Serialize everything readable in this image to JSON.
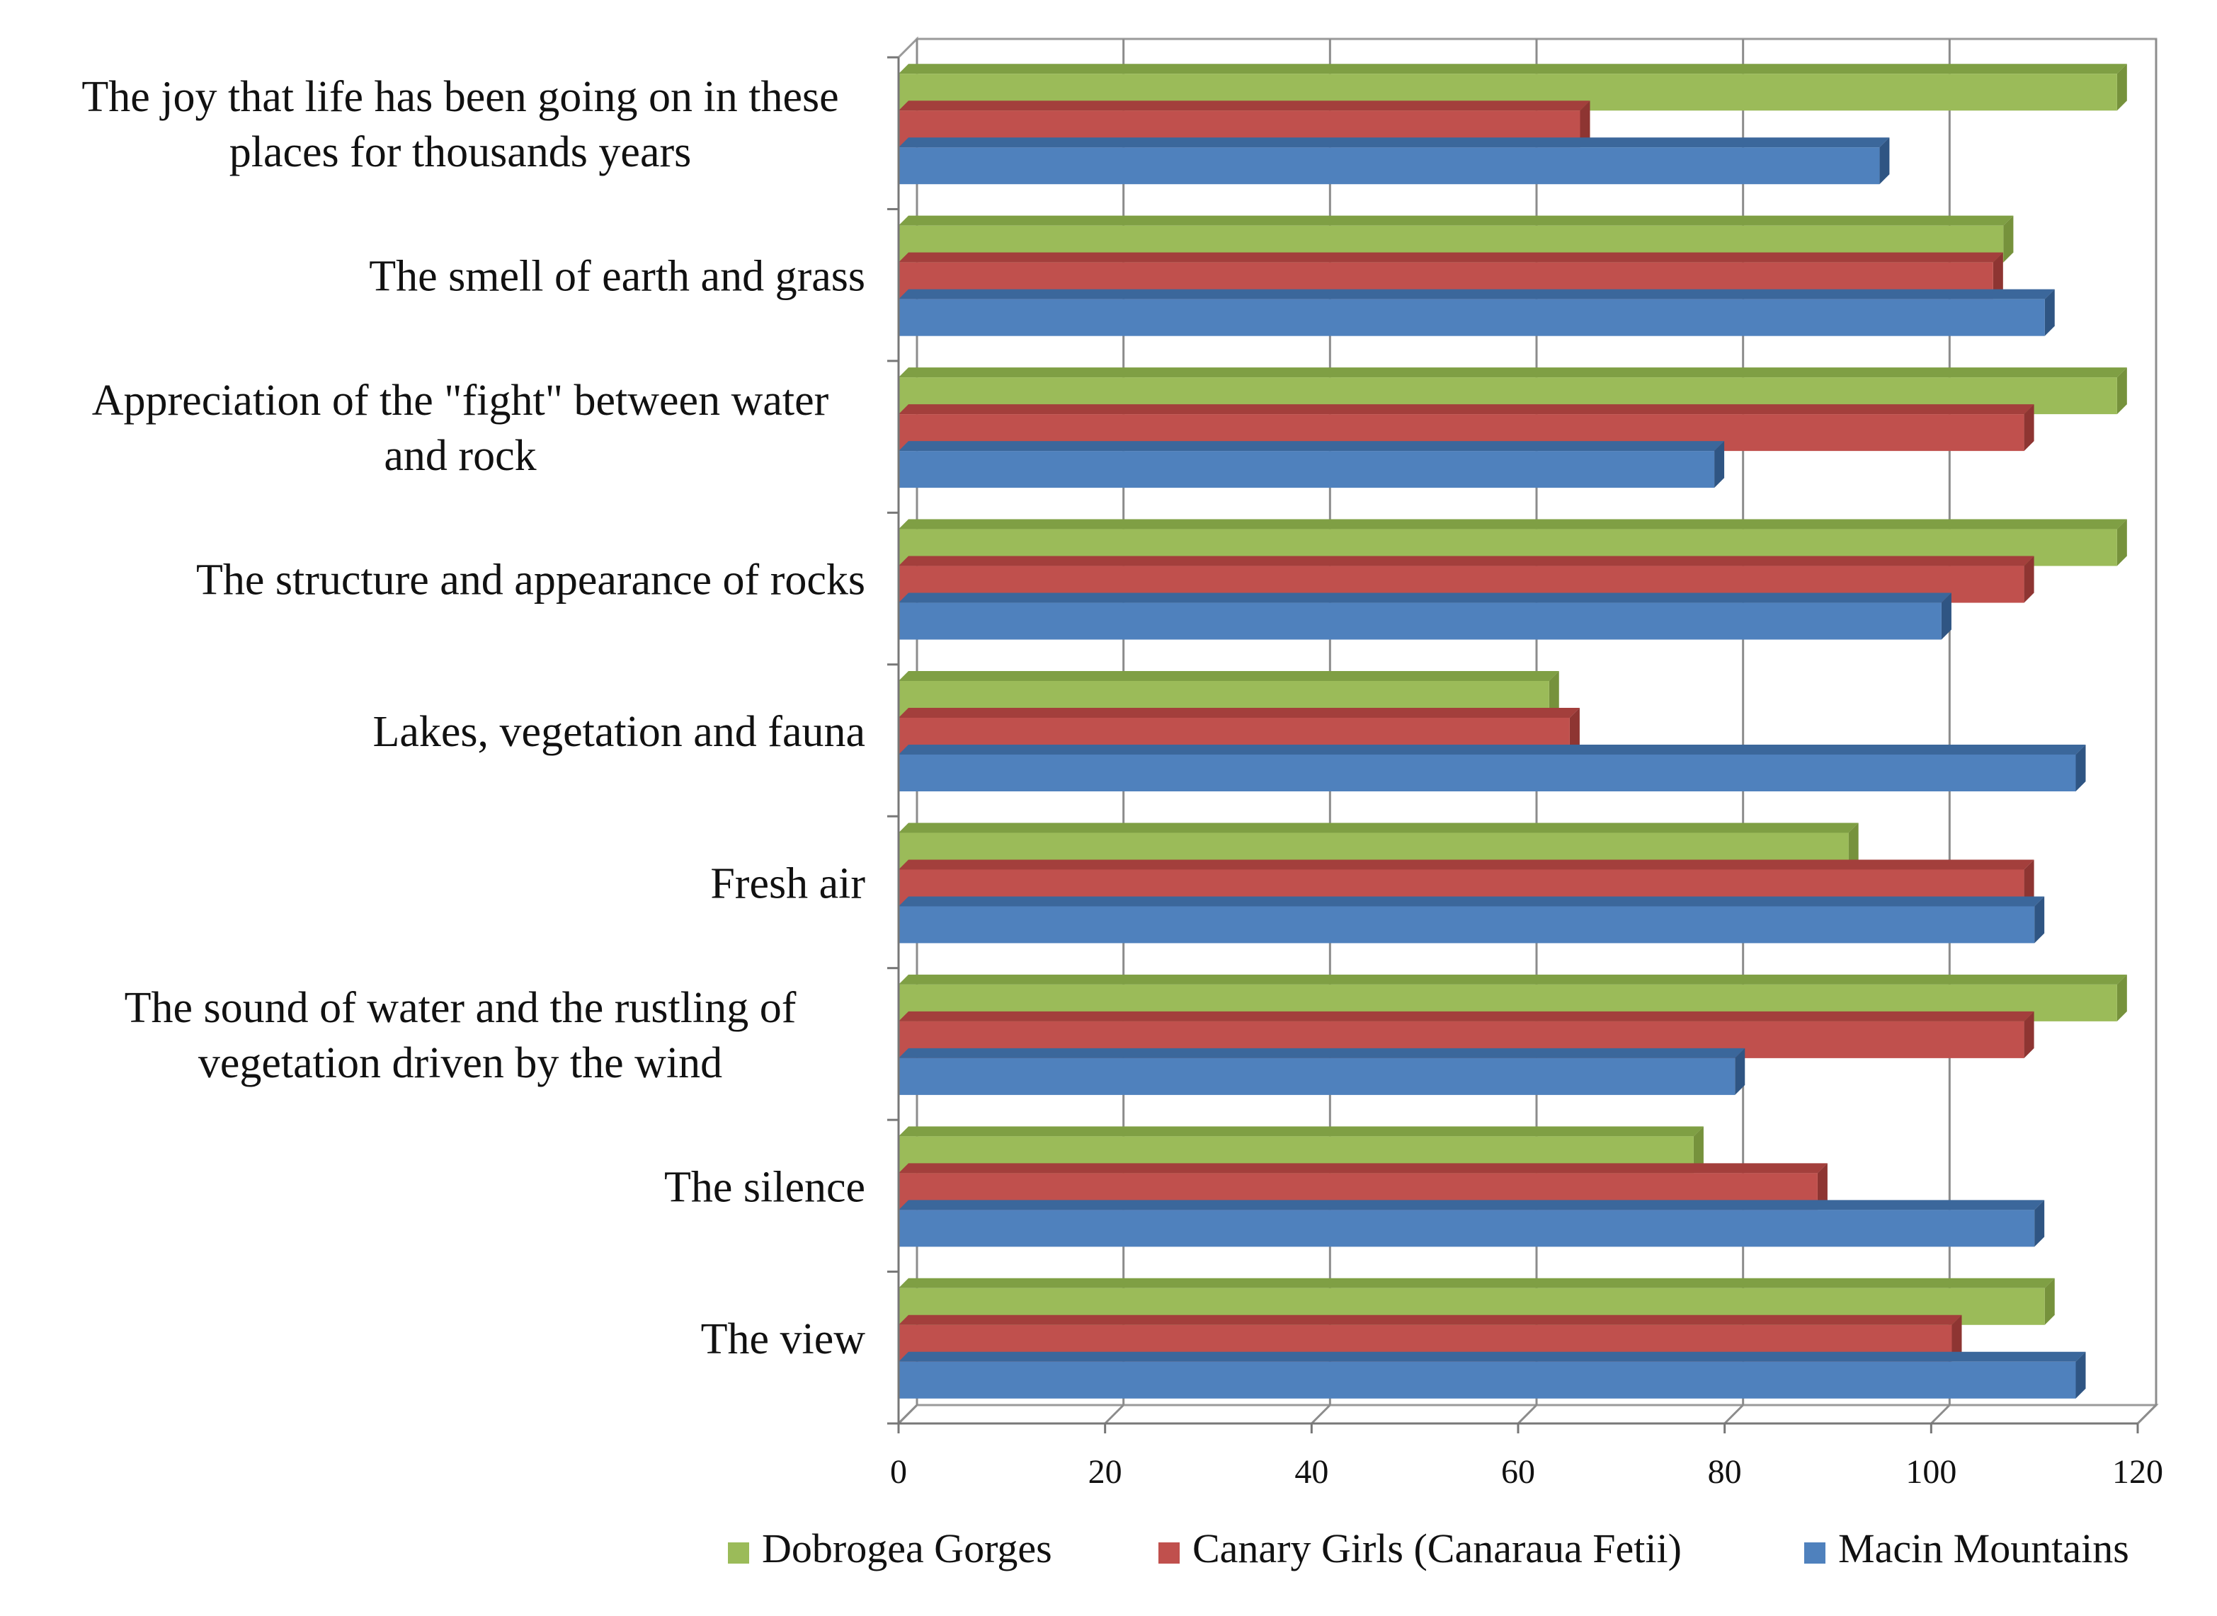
{
  "chart_data": {
    "type": "bar",
    "orientation": "horizontal",
    "three_d": true,
    "categories": [
      [
        "The joy that life has been going on in these",
        "places for thousands  years"
      ],
      [
        "The smell of earth and grass"
      ],
      [
        "Appreciation of the \"fight\" between water",
        "and rock"
      ],
      [
        "The structure and appearance of rocks"
      ],
      [
        "Lakes, vegetation and fauna"
      ],
      [
        "Fresh air"
      ],
      [
        "The sound of water and the rustling of",
        "vegetation driven by the wind"
      ],
      [
        "The silence"
      ],
      [
        "The view"
      ]
    ],
    "series": [
      {
        "name": "Dobrogea Gorges",
        "color": "#9BBB59",
        "side": "#76923C",
        "top": "#7F9F44",
        "values": [
          118,
          107,
          118,
          118,
          63,
          92,
          118,
          77,
          111
        ]
      },
      {
        "name": "Canary Girls (Canaraua Fetii)",
        "color": "#C0504D",
        "side": "#8E3532",
        "top": "#A33F3C",
        "values": [
          66,
          106,
          109,
          109,
          65,
          109,
          109,
          89,
          102
        ]
      },
      {
        "name": "Macin Mountains",
        "color": "#4F81BD",
        "side": "#2F5583",
        "top": "#3B679B",
        "values": [
          95,
          111,
          79,
          101,
          114,
          110,
          81,
          110,
          114
        ]
      }
    ],
    "xlim": [
      0,
      120
    ],
    "xticks": [
      "0",
      "20",
      "40",
      "60",
      "80",
      "100",
      "120"
    ],
    "grid": true,
    "legend_position": "bottom"
  }
}
